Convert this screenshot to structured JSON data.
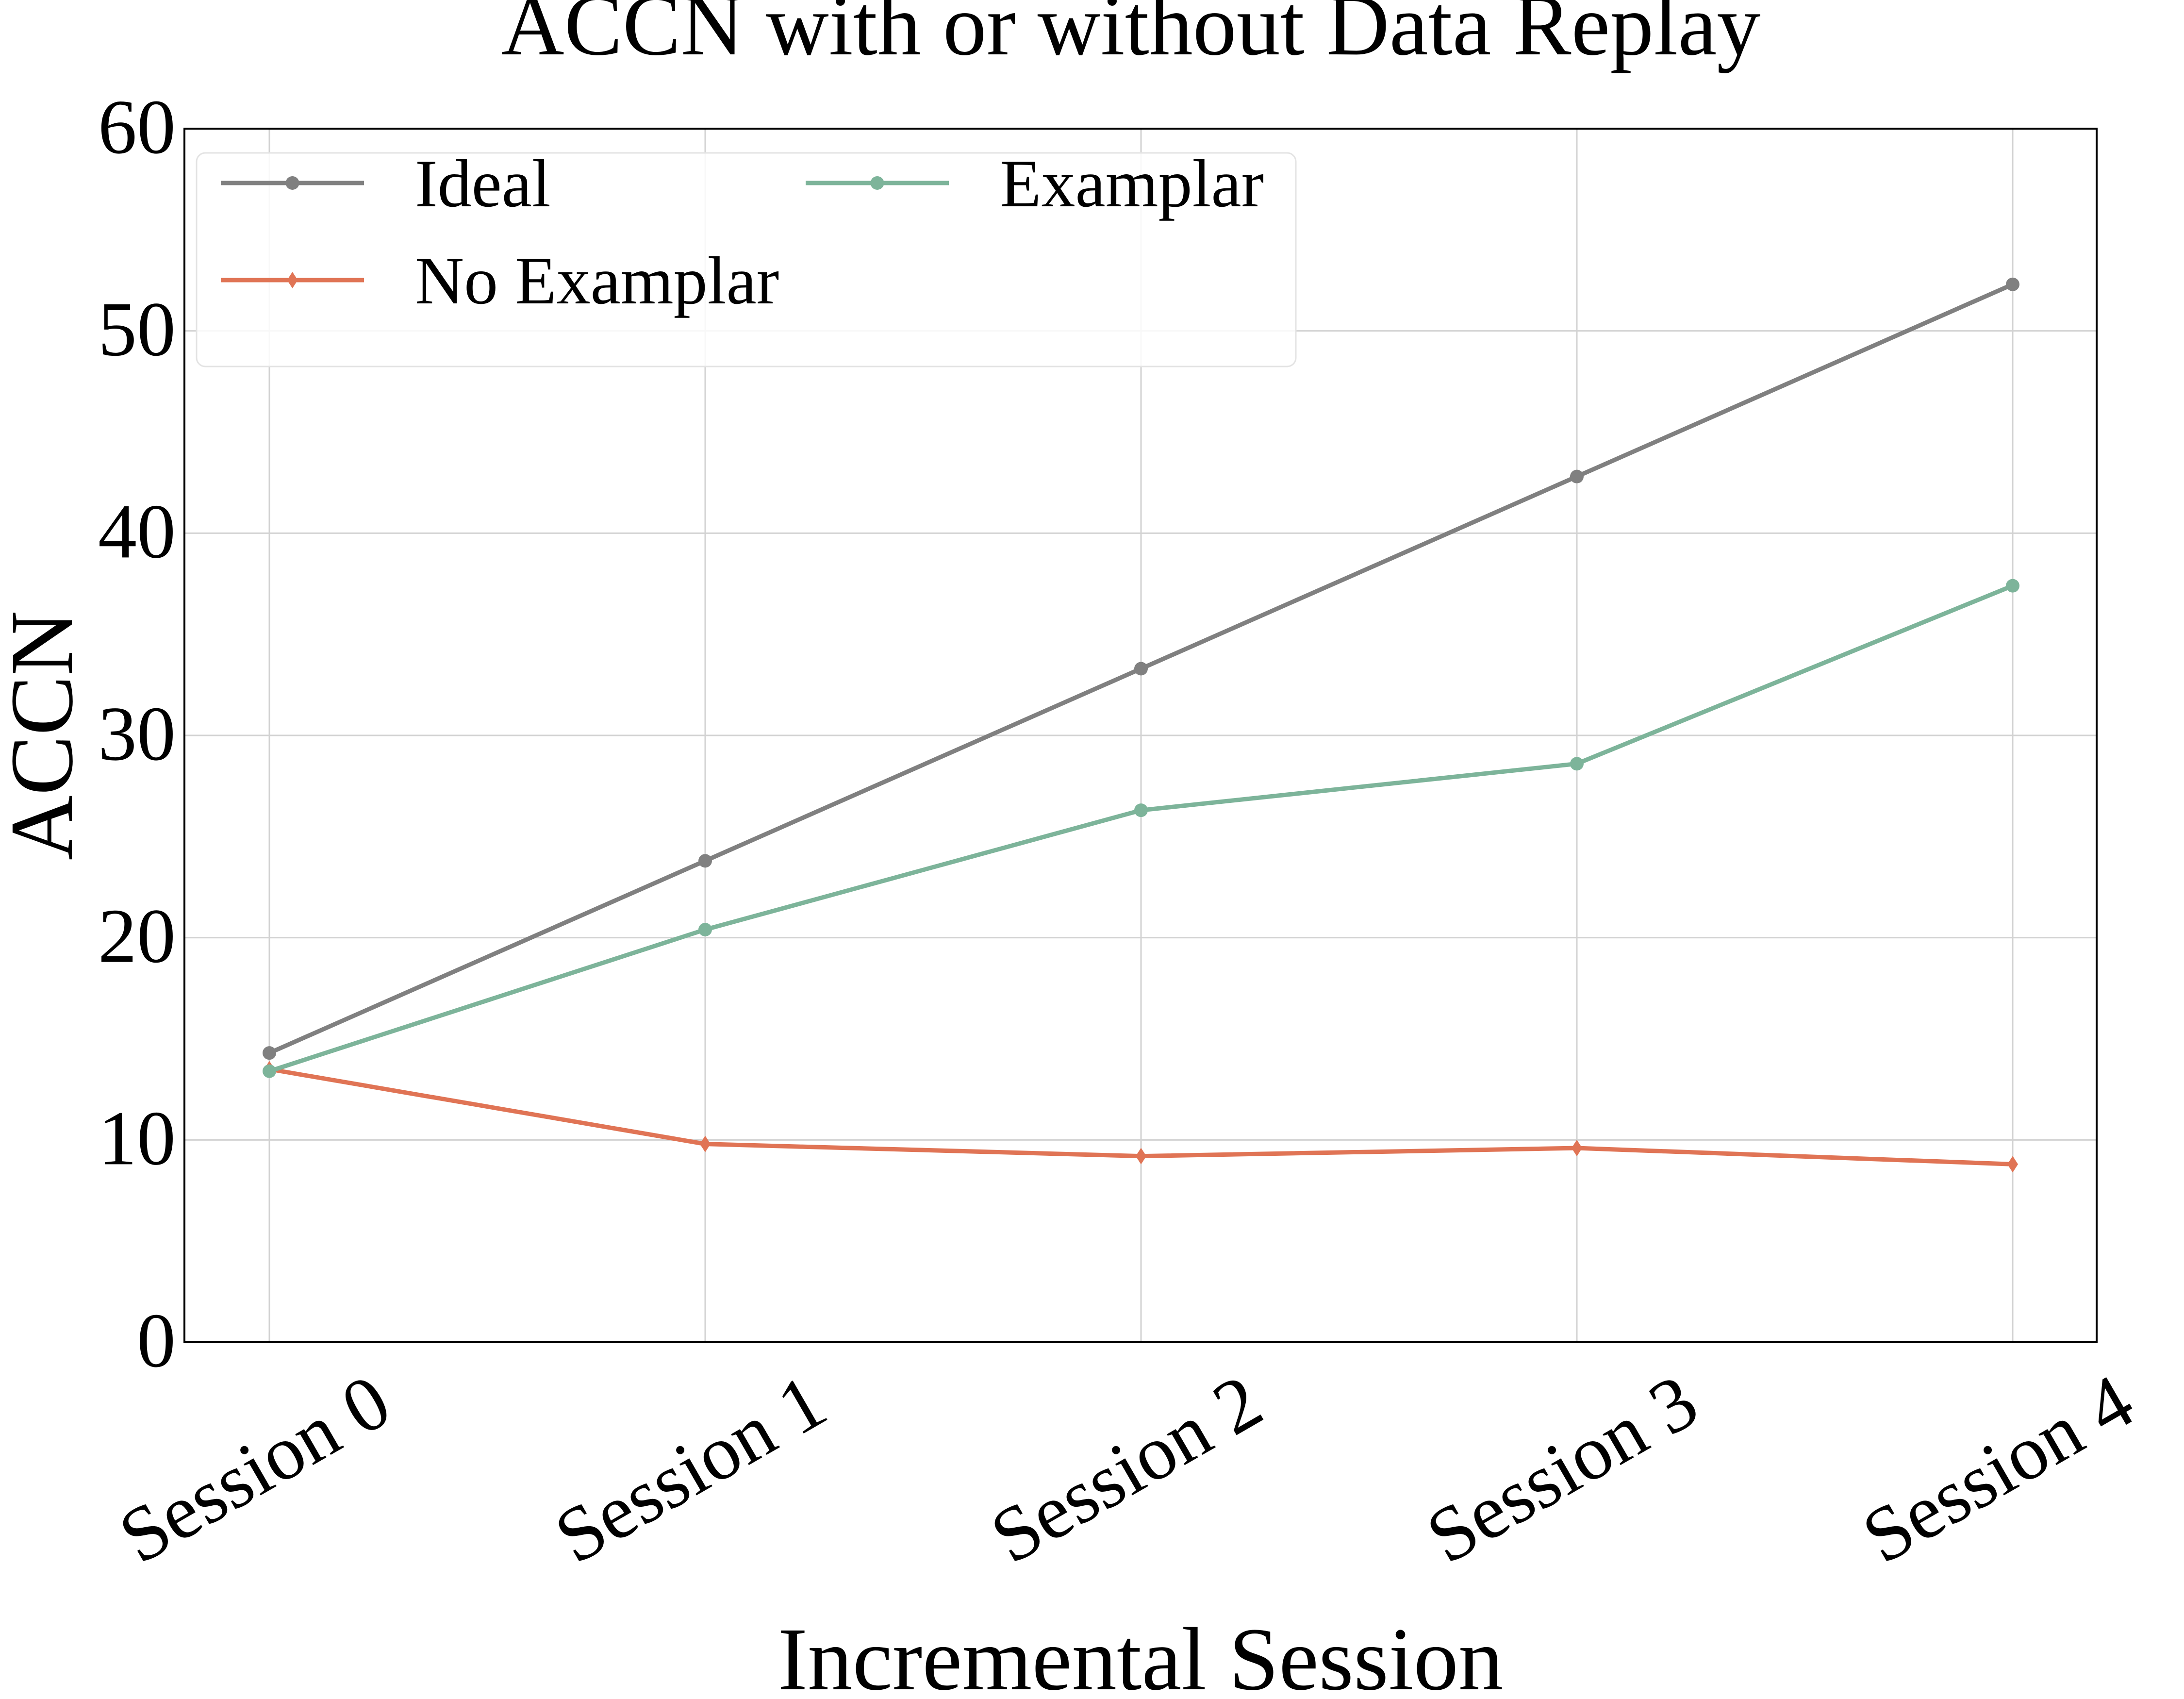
{
  "chart_data": {
    "type": "line",
    "title": "ACCN with or without Data Replay",
    "xlabel": "Incremental Session",
    "ylabel": "ACCN",
    "categories": [
      "Session 0",
      "Session 1",
      "Session 2",
      "Session 3",
      "Session 4"
    ],
    "ylim": [
      0,
      60
    ],
    "yticks": [
      "0",
      "10",
      "20",
      "30",
      "40",
      "50",
      "60"
    ],
    "grid": true,
    "legend_position": "top-left",
    "legend_columns": 2,
    "series": [
      {
        "name": "Ideal",
        "values": [
          14.3,
          23.8,
          33.3,
          42.8,
          52.3
        ],
        "color": "#808080",
        "marker": "circle"
      },
      {
        "name": "No Examplar",
        "values": [
          13.5,
          9.8,
          9.2,
          9.6,
          8.8
        ],
        "color": "#E07455",
        "marker": "diamond"
      },
      {
        "name": "Examplar",
        "values": [
          13.4,
          20.4,
          26.3,
          28.6,
          37.4
        ],
        "color": "#7DB49A",
        "marker": "circle"
      }
    ]
  }
}
